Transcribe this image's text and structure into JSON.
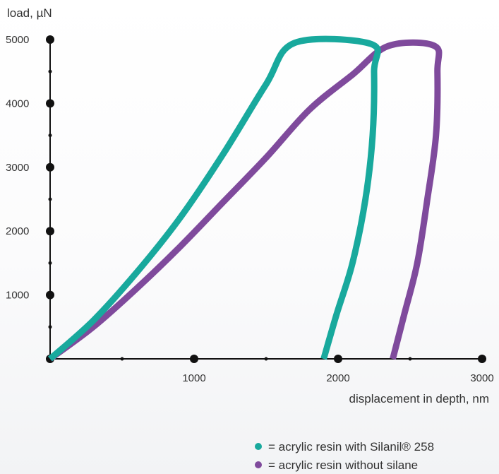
{
  "chart_data": {
    "type": "line",
    "ylabel": "load, µN",
    "xlabel": "displacement in depth, nm",
    "xlim": [
      0,
      3000
    ],
    "ylim": [
      0,
      5000
    ],
    "x_ticks": [
      "1000",
      "2000",
      "3000"
    ],
    "y_ticks": [
      "1000",
      "2000",
      "3000",
      "4000",
      "5000"
    ],
    "series": [
      {
        "name": "acrylic resin with Silanil® 258",
        "color": "#18a99d",
        "points": [
          [
            0,
            0
          ],
          [
            300,
            600
          ],
          [
            600,
            1350
          ],
          [
            900,
            2200
          ],
          [
            1200,
            3200
          ],
          [
            1500,
            4300
          ],
          [
            1700,
            4950
          ],
          [
            2230,
            4930
          ],
          [
            2250,
            4500
          ],
          [
            2240,
            3500
          ],
          [
            2190,
            2500
          ],
          [
            2100,
            1500
          ],
          [
            1990,
            700
          ],
          [
            1900,
            0
          ]
        ]
      },
      {
        "name": "acrylic resin without silane",
        "color": "#7f4a9c",
        "points": [
          [
            0,
            0
          ],
          [
            300,
            500
          ],
          [
            600,
            1100
          ],
          [
            900,
            1750
          ],
          [
            1200,
            2450
          ],
          [
            1500,
            3150
          ],
          [
            1800,
            3900
          ],
          [
            2100,
            4450
          ],
          [
            2350,
            4900
          ],
          [
            2670,
            4900
          ],
          [
            2690,
            4500
          ],
          [
            2680,
            3500
          ],
          [
            2620,
            2500
          ],
          [
            2550,
            1500
          ],
          [
            2460,
            700
          ],
          [
            2380,
            0
          ]
        ]
      }
    ],
    "grid": false,
    "legend_position": "bottom-right"
  }
}
